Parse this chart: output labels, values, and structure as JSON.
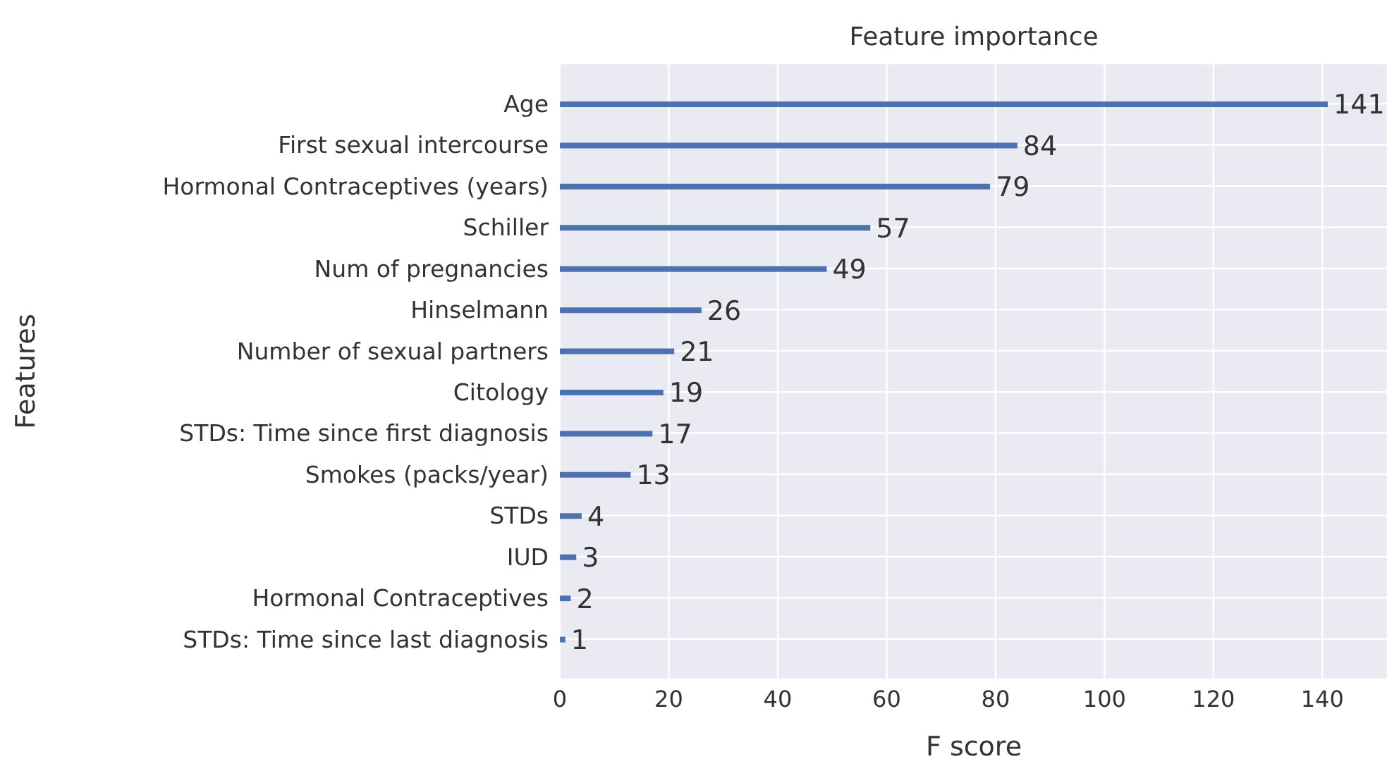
{
  "chart_data": {
    "type": "bar",
    "orientation": "horizontal",
    "title": "Feature importance",
    "xlabel": "F score",
    "ylabel": "Features",
    "categories": [
      "Age",
      "First sexual intercourse",
      "Hormonal Contraceptives (years)",
      "Schiller",
      "Num of pregnancies",
      "Hinselmann",
      "Number of sexual partners",
      "Citology",
      "STDs: Time since first diagnosis",
      "Smokes (packs/year)",
      "STDs",
      "IUD",
      "Hormonal Contraceptives",
      "STDs: Time since last diagnosis"
    ],
    "values": [
      141,
      84,
      79,
      57,
      49,
      26,
      21,
      19,
      17,
      13,
      4,
      3,
      2,
      1
    ],
    "color": "#4c72b0",
    "xlim": [
      0,
      152
    ],
    "xticks": [
      0,
      20,
      40,
      60,
      80,
      100,
      120,
      140
    ],
    "grid": true,
    "data_labels": true
  }
}
